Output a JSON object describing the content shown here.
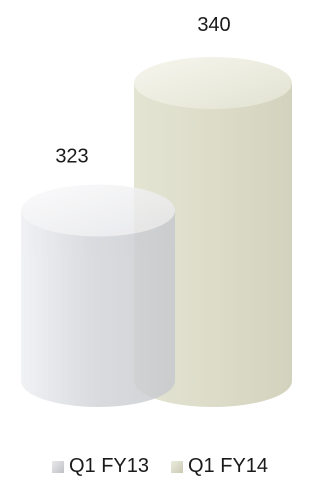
{
  "chart_data": {
    "type": "bar",
    "style": "3d-cylinder",
    "categories": [
      ""
    ],
    "series": [
      {
        "name": "Q1 FY13",
        "values": [
          323
        ],
        "color": "#d8d9dd"
      },
      {
        "name": "Q1 FY14",
        "values": [
          340
        ],
        "color": "#dcdccb"
      }
    ],
    "data_labels": [
      "323",
      "340"
    ],
    "legend_position": "bottom",
    "grid": false,
    "axes_visible": false
  }
}
